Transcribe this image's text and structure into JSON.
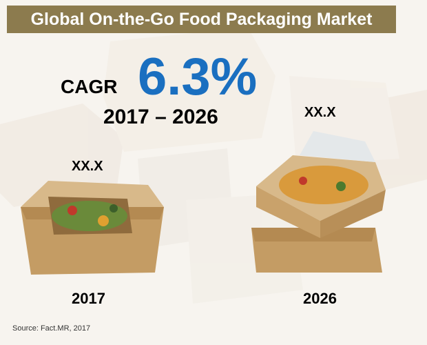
{
  "header": {
    "title": "Global On-the-Go Food Packaging Market"
  },
  "highlight": {
    "label": "CAGR",
    "value": "6.3%",
    "period": "2017 – 2026"
  },
  "items": [
    {
      "value": "XX.X",
      "year": "2017"
    },
    {
      "value": "XX.X",
      "year": "2026"
    }
  ],
  "footer": {
    "source": "Source: Fact.MR, 2017"
  }
}
